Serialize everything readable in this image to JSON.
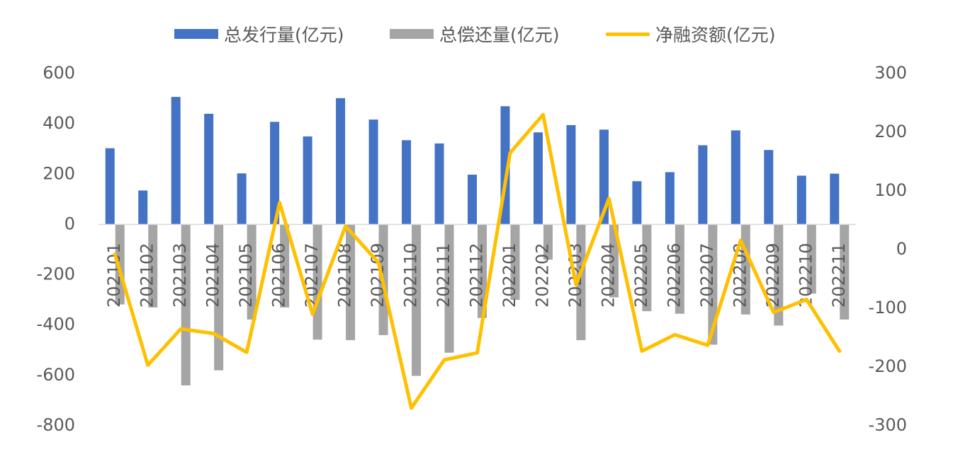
{
  "colors": {
    "issuance": "#4472C4",
    "repayment": "#A5A5A5",
    "net": "#FFC000",
    "text": "#595959",
    "axis": "#D9D9D9"
  },
  "chart_data": {
    "type": "bar",
    "categories": [
      "202101",
      "202102",
      "202103",
      "202104",
      "202105",
      "202106",
      "202107",
      "202108",
      "202109",
      "202110",
      "202111",
      "202112",
      "202201",
      "202202",
      "202203",
      "202204",
      "202205",
      "202206",
      "202207",
      "202208",
      "202209",
      "202210",
      "202211"
    ],
    "series": [
      {
        "name": "总发行量(亿元)",
        "type": "bar",
        "axis": "left",
        "values": [
          303,
          135,
          507,
          440,
          203,
          408,
          350,
          502,
          417,
          335,
          322,
          198,
          470,
          366,
          395,
          377,
          172,
          208,
          315,
          374,
          296,
          194,
          202
        ]
      },
      {
        "name": "总偿还量(亿元)",
        "type": "bar",
        "axis": "left",
        "values": [
          -318,
          -330,
          -640,
          -580,
          -378,
          -330,
          -458,
          -460,
          -440,
          -602,
          -510,
          -372,
          -300,
          -140,
          -460,
          -290,
          -345,
          -355,
          -478,
          -358,
          -402,
          -275,
          -378
        ]
      },
      {
        "name": "净融资额(亿元)",
        "type": "line",
        "axis": "right",
        "values": [
          -8,
          -197,
          -135,
          -143,
          -175,
          80,
          -110,
          40,
          -22,
          -270,
          -188,
          -176,
          165,
          230,
          -60,
          87,
          -173,
          -145,
          -163,
          16,
          -107,
          -85,
          -173
        ]
      }
    ],
    "y_left": {
      "ylim": [
        -800,
        600
      ],
      "ticks": [
        "600",
        "400",
        "200",
        "0",
        "-200",
        "-400",
        "-600",
        "-800"
      ]
    },
    "y_right": {
      "ylim": [
        -300,
        300
      ],
      "ticks": [
        "300",
        "200",
        "100",
        "0",
        "-100",
        "-200",
        "-300"
      ]
    },
    "legend_position": "top-center",
    "grid": false
  }
}
